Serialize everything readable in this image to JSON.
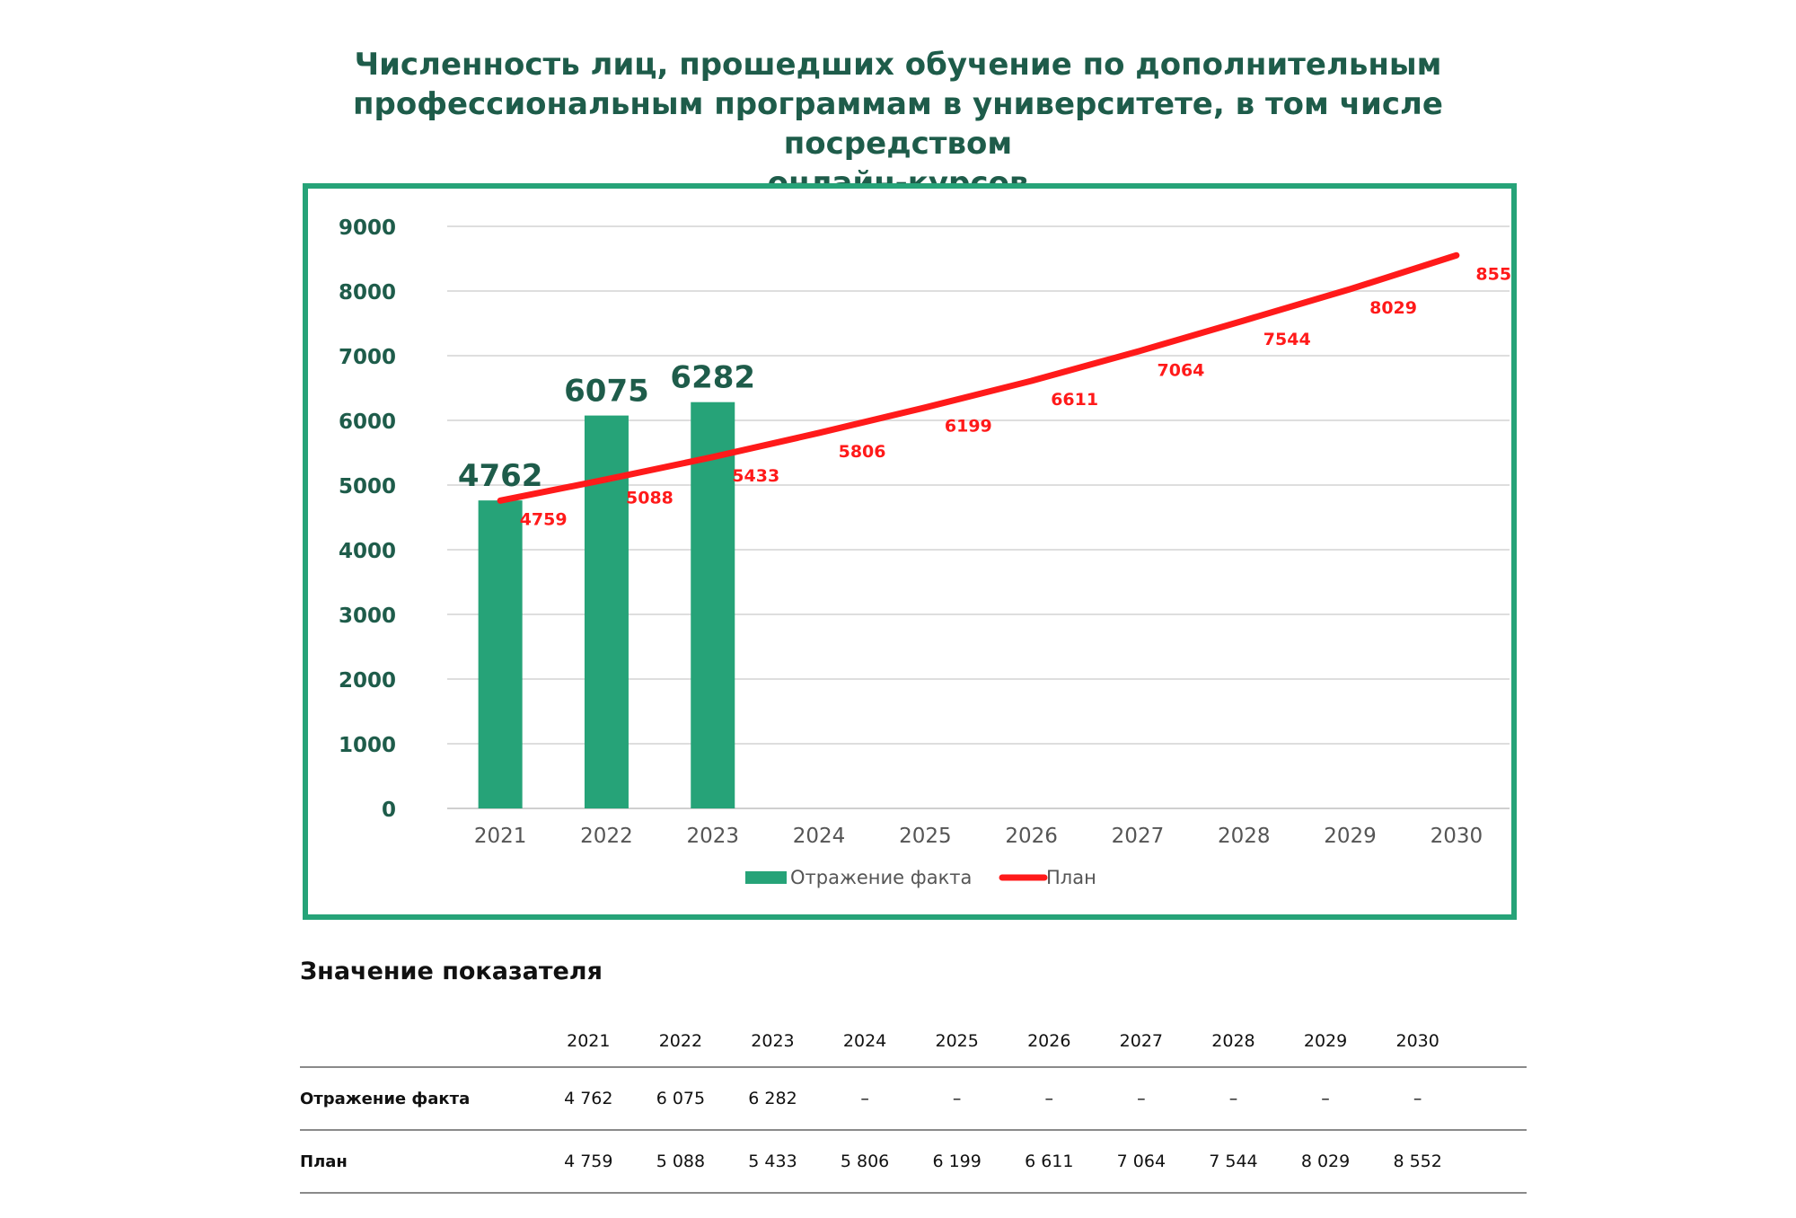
{
  "title_lines": [
    "Численность лиц, прошедших обучение по дополнительным",
    "профессиональным программам в университете, в том числе посредством",
    "онлайн-курсов"
  ],
  "colors": {
    "bar": "#26a378",
    "line": "#ff1a1a",
    "frame": "#26a378",
    "title": "#1e5c4a",
    "axis_text": "#1e5c4a"
  },
  "chart_data": {
    "type": "bar",
    "categories": [
      "2021",
      "2022",
      "2023",
      "2024",
      "2025",
      "2026",
      "2027",
      "2028",
      "2029",
      "2030"
    ],
    "ylim": [
      0,
      9000
    ],
    "yticks": [
      0,
      1000,
      2000,
      3000,
      4000,
      5000,
      6000,
      7000,
      8000,
      9000
    ],
    "grid": true,
    "legend_position": "bottom",
    "series": [
      {
        "name": "Отражение факта",
        "type": "bar",
        "values": [
          4762,
          6075,
          6282,
          null,
          null,
          null,
          null,
          null,
          null,
          null
        ]
      },
      {
        "name": "План",
        "type": "line",
        "values": [
          4759,
          5088,
          5433,
          5806,
          6199,
          6611,
          7064,
          7544,
          8029,
          8552
        ]
      }
    ]
  },
  "table": {
    "heading": "Значение показателя",
    "years": [
      "2021",
      "2022",
      "2023",
      "2024",
      "2025",
      "2026",
      "2027",
      "2028",
      "2029",
      "2030"
    ],
    "rows": [
      {
        "label": "Отражение факта",
        "values": [
          "4 762",
          "6 075",
          "6 282",
          "–",
          "–",
          "–",
          "–",
          "–",
          "–",
          "–"
        ]
      },
      {
        "label": "План",
        "values": [
          "4 759",
          "5 088",
          "5 433",
          "5 806",
          "6 199",
          "6 611",
          "7 064",
          "7 544",
          "8 029",
          "8 552"
        ]
      }
    ]
  }
}
